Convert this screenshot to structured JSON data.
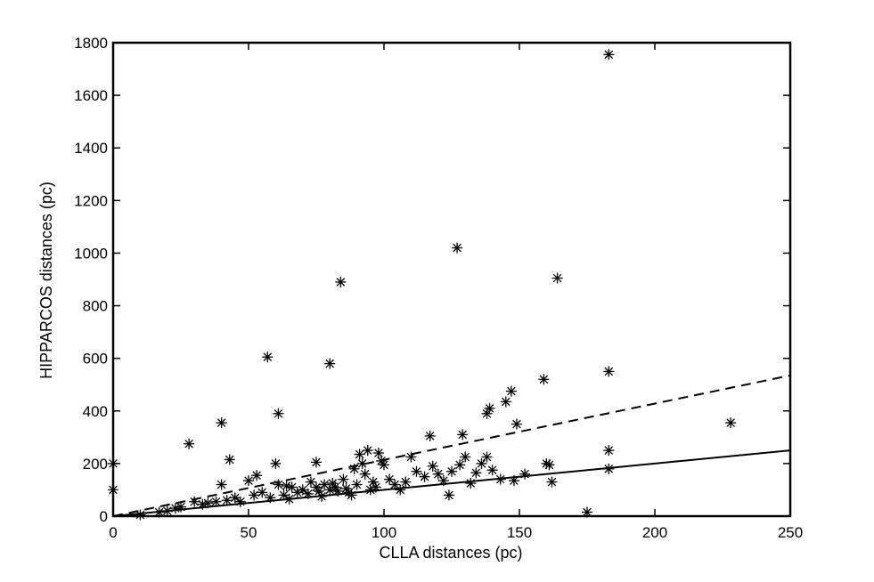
{
  "chart_data": {
    "type": "scatter",
    "title": "",
    "xlabel": "CLLA distances (pc)",
    "ylabel": "HIPPARCOS distances (pc)",
    "xlim": [
      0,
      250
    ],
    "ylim": [
      0,
      1800
    ],
    "xticks": [
      0,
      50,
      100,
      150,
      200,
      250
    ],
    "yticks": [
      0,
      200,
      400,
      600,
      800,
      1000,
      1200,
      1400,
      1600,
      1800
    ],
    "grid": false,
    "marker": "asterisk",
    "colors": {
      "axes": "#000000",
      "marker": "#000000",
      "background": "#ffffff"
    },
    "lines": [
      {
        "style": "solid",
        "x": [
          0,
          250
        ],
        "y": [
          0,
          250
        ]
      },
      {
        "style": "dashed",
        "x": [
          0,
          250
        ],
        "y": [
          0,
          535
        ]
      }
    ],
    "points": [
      [
        0,
        200
      ],
      [
        0,
        100
      ],
      [
        10,
        5
      ],
      [
        17,
        15
      ],
      [
        20,
        20
      ],
      [
        23,
        30
      ],
      [
        25,
        35
      ],
      [
        28,
        275
      ],
      [
        30,
        55
      ],
      [
        33,
        45
      ],
      [
        35,
        50
      ],
      [
        38,
        55
      ],
      [
        40,
        355
      ],
      [
        40,
        120
      ],
      [
        42,
        60
      ],
      [
        43,
        215
      ],
      [
        45,
        70
      ],
      [
        47,
        55
      ],
      [
        50,
        135
      ],
      [
        52,
        80
      ],
      [
        53,
        155
      ],
      [
        55,
        90
      ],
      [
        57,
        605
      ],
      [
        58,
        70
      ],
      [
        60,
        200
      ],
      [
        61,
        120
      ],
      [
        61,
        390
      ],
      [
        63,
        80
      ],
      [
        64,
        115
      ],
      [
        65,
        65
      ],
      [
        66,
        110
      ],
      [
        68,
        90
      ],
      [
        70,
        100
      ],
      [
        72,
        85
      ],
      [
        73,
        130
      ],
      [
        75,
        205
      ],
      [
        75,
        110
      ],
      [
        76,
        95
      ],
      [
        77,
        75
      ],
      [
        78,
        120
      ],
      [
        80,
        580
      ],
      [
        80,
        100
      ],
      [
        81,
        125
      ],
      [
        82,
        110
      ],
      [
        83,
        95
      ],
      [
        84,
        890
      ],
      [
        85,
        140
      ],
      [
        86,
        105
      ],
      [
        87,
        90
      ],
      [
        88,
        80
      ],
      [
        89,
        180
      ],
      [
        90,
        120
      ],
      [
        91,
        235
      ],
      [
        92,
        200
      ],
      [
        93,
        160
      ],
      [
        94,
        250
      ],
      [
        95,
        100
      ],
      [
        96,
        130
      ],
      [
        97,
        110
      ],
      [
        98,
        240
      ],
      [
        99,
        210
      ],
      [
        100,
        195
      ],
      [
        102,
        140
      ],
      [
        104,
        120
      ],
      [
        106,
        100
      ],
      [
        108,
        130
      ],
      [
        110,
        225
      ],
      [
        112,
        170
      ],
      [
        115,
        150
      ],
      [
        117,
        305
      ],
      [
        118,
        190
      ],
      [
        120,
        160
      ],
      [
        122,
        135
      ],
      [
        124,
        80
      ],
      [
        125,
        170
      ],
      [
        127,
        1020
      ],
      [
        128,
        195
      ],
      [
        129,
        310
      ],
      [
        130,
        225
      ],
      [
        132,
        125
      ],
      [
        134,
        165
      ],
      [
        136,
        200
      ],
      [
        138,
        390
      ],
      [
        138,
        225
      ],
      [
        139,
        410
      ],
      [
        140,
        175
      ],
      [
        143,
        140
      ],
      [
        145,
        435
      ],
      [
        147,
        475
      ],
      [
        148,
        135
      ],
      [
        149,
        350
      ],
      [
        152,
        160
      ],
      [
        159,
        520
      ],
      [
        160,
        200
      ],
      [
        161,
        195
      ],
      [
        162,
        130
      ],
      [
        164,
        905
      ],
      [
        175,
        15
      ],
      [
        183,
        1755
      ],
      [
        183,
        550
      ],
      [
        183,
        250
      ],
      [
        183,
        180
      ],
      [
        228,
        355
      ]
    ]
  }
}
